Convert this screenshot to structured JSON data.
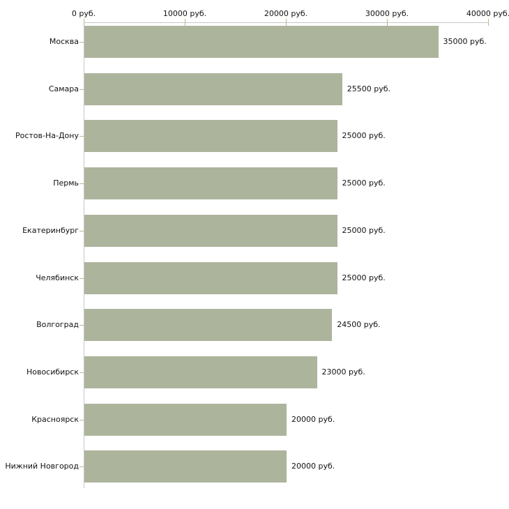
{
  "chart_data": {
    "type": "bar",
    "orientation": "horizontal",
    "categories": [
      "Москва",
      "Самара",
      "Ростов-На-Дону",
      "Пермь",
      "Екатеринбург",
      "Челябинск",
      "Волгоград",
      "Новосибирск",
      "Красноярск",
      "Нижний Новгород"
    ],
    "values": [
      35000,
      25500,
      25000,
      25000,
      25000,
      25000,
      24500,
      23000,
      20000,
      20000
    ],
    "value_labels": [
      "35000 руб.",
      "25500 руб.",
      "25000 руб.",
      "25000 руб.",
      "25000 руб.",
      "25000 руб.",
      "24500 руб.",
      "23000 руб.",
      "20000 руб.",
      "20000 руб."
    ],
    "unit": "руб.",
    "x_axis": {
      "position": "top",
      "range": [
        0,
        40000
      ],
      "ticks": [
        0,
        10000,
        20000,
        30000,
        40000
      ],
      "tick_labels": [
        "0 руб.",
        "10000 руб.",
        "20000 руб.",
        "30000 руб.",
        "40000 руб."
      ]
    },
    "grid": false,
    "legend": false,
    "colors": {
      "bar": "#adb49c",
      "axis_line": "#c8c8c8",
      "tick": "#b6ba92",
      "text": "#111111",
      "background": "#ffffff"
    }
  }
}
